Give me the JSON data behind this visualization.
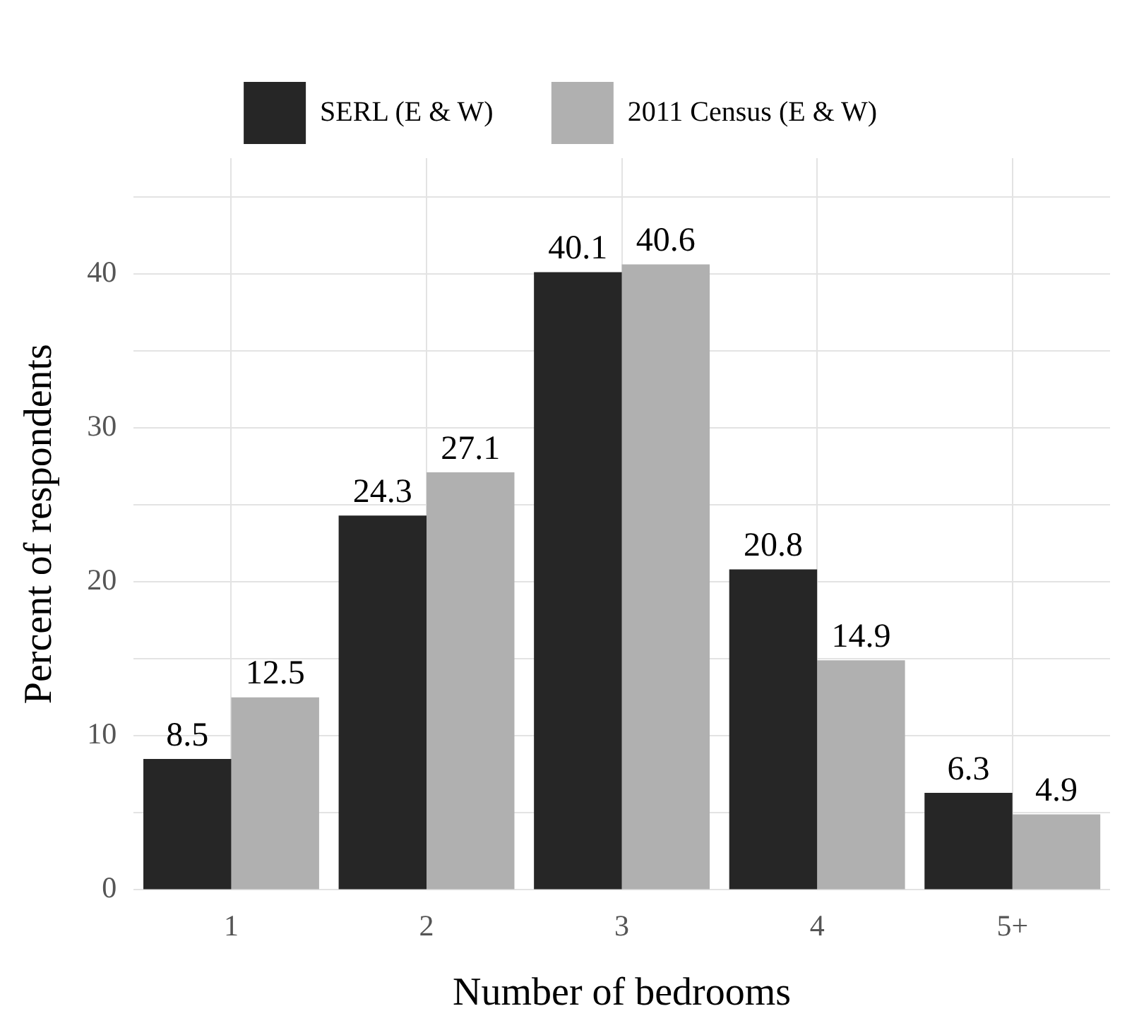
{
  "chart_data": {
    "type": "bar",
    "xlabel": "Number of bedrooms",
    "ylabel": "Percent of respondents",
    "categories": [
      "1",
      "2",
      "3",
      "4",
      "5+"
    ],
    "series": [
      {
        "name": "SERL (E & W)",
        "color": "#262626",
        "values": [
          8.5,
          24.3,
          40.1,
          20.8,
          6.3
        ]
      },
      {
        "name": "2011 Census (E & W)",
        "color": "#b0b0b0",
        "values": [
          12.5,
          27.1,
          40.6,
          14.9,
          4.9
        ]
      }
    ],
    "ylim": [
      0,
      47.5
    ],
    "yticks": [
      0,
      {
        "value": 5,
        "label": null
      },
      10,
      {
        "value": 15,
        "label": null
      },
      20,
      {
        "value": 25,
        "label": null
      },
      30,
      {
        "value": 35,
        "label": null
      },
      40,
      {
        "value": 45,
        "label": null
      }
    ],
    "grid": true,
    "legend": "top",
    "data_labels": true
  }
}
